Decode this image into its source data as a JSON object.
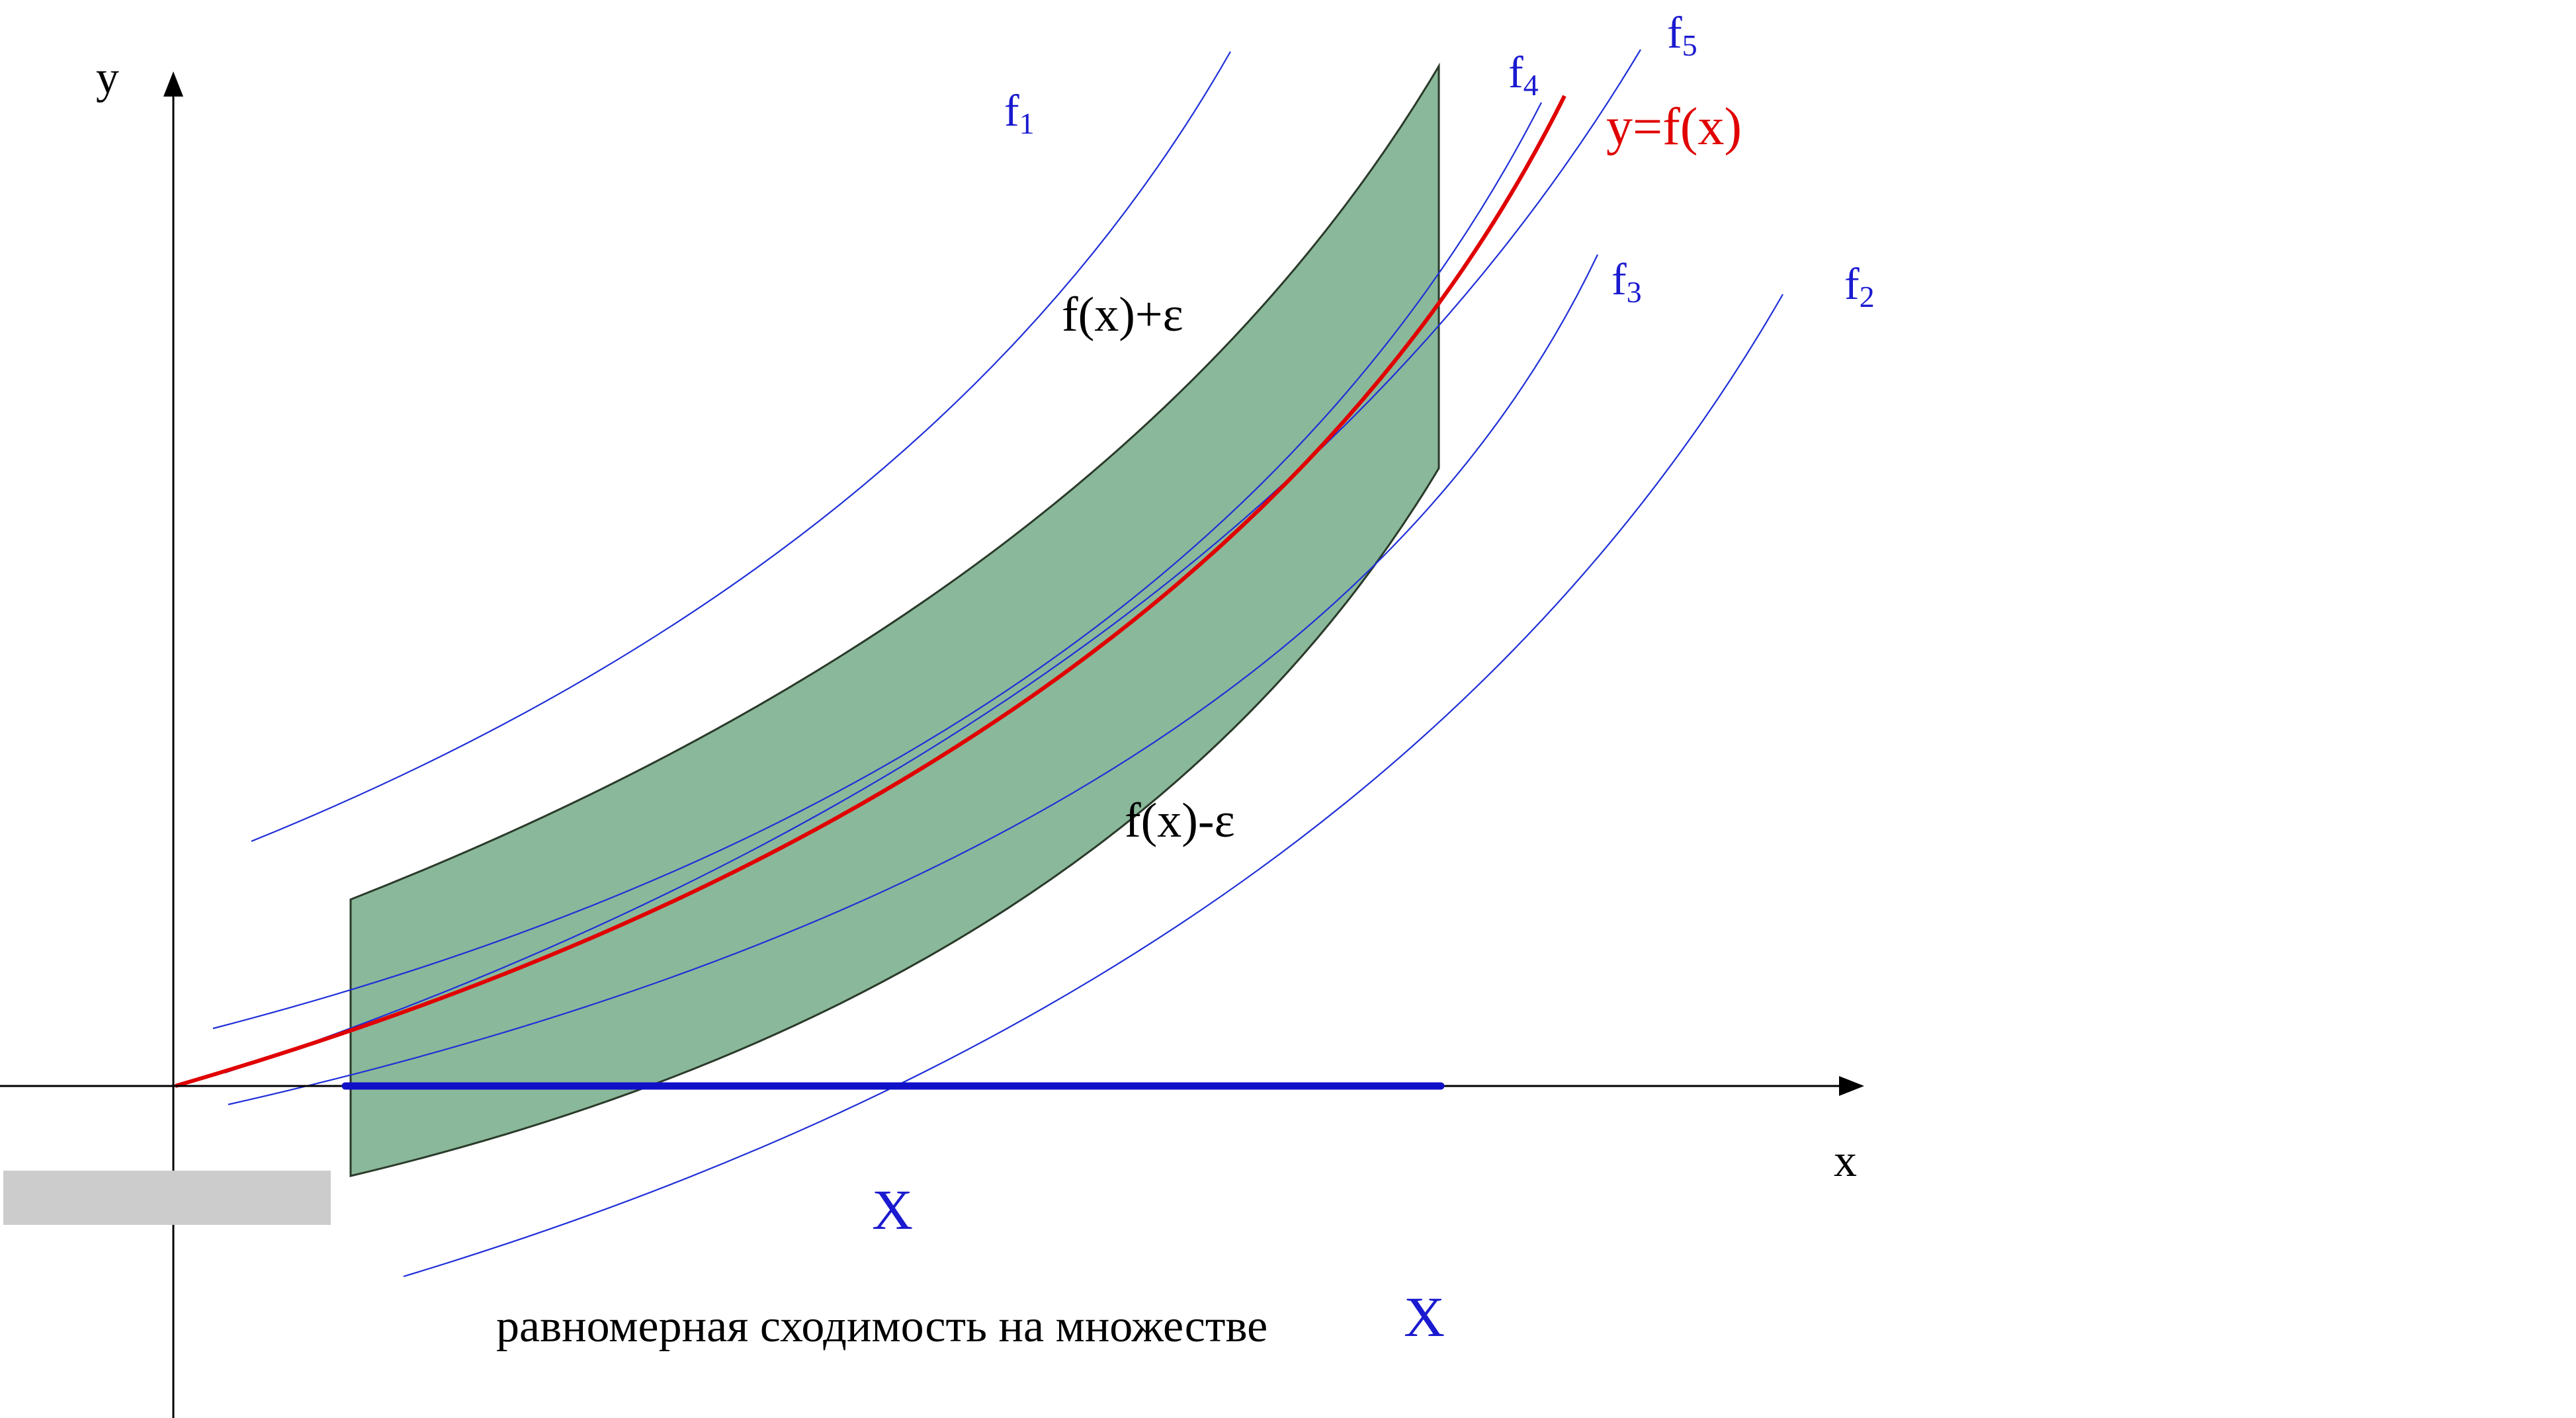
{
  "axes": {
    "x_label": "x",
    "y_label": "y"
  },
  "curves": {
    "f1": {
      "label_main": "f",
      "label_sub": "1"
    },
    "f2": {
      "label_main": "f",
      "label_sub": "2"
    },
    "f3": {
      "label_main": "f",
      "label_sub": "3"
    },
    "f4": {
      "label_main": "f",
      "label_sub": "4"
    },
    "f5": {
      "label_main": "f",
      "label_sub": "5"
    },
    "main": {
      "label": "y=f(x)"
    }
  },
  "band": {
    "upper_label": "f(x)+ε",
    "lower_label": "f(x)-ε"
  },
  "set": {
    "label": "X"
  },
  "caption": {
    "text": "равномерная сходимость на множестве",
    "set_symbol": "X"
  },
  "colors": {
    "band_fill": "#8ab89a",
    "band_stroke": "#2a3a2a",
    "main_curve": "#e00000",
    "family_curves": "#1f2fd8",
    "set_segment": "#1010c8",
    "axis": "#000000",
    "blue_text": "#1a1ad0",
    "red_text": "#e00000",
    "redaction": "#cccccc"
  }
}
